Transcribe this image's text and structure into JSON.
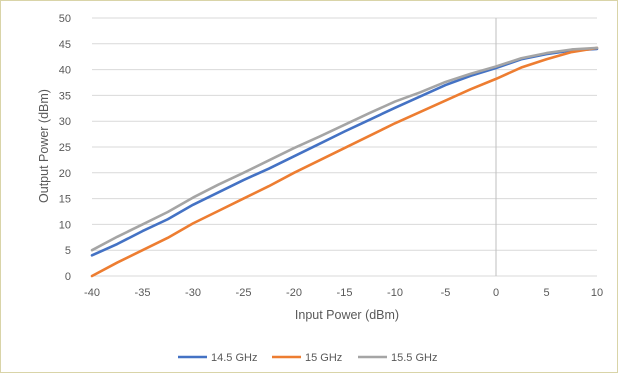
{
  "chart_data": {
    "type": "line",
    "title": "",
    "xlabel": "Input Power (dBm)",
    "ylabel": "Output Power (dBm)",
    "xlim": [
      -40,
      10
    ],
    "ylim": [
      0,
      50
    ],
    "x_ticks": [
      "-40",
      "-35",
      "-30",
      "-25",
      "-20",
      "-15",
      "-10",
      "-5",
      "0",
      "5",
      "10"
    ],
    "y_ticks": [
      "0",
      "5",
      "10",
      "15",
      "20",
      "25",
      "30",
      "35",
      "40",
      "45",
      "50"
    ],
    "grid": "horizontal",
    "legend_position": "bottom",
    "x": [
      -40,
      -37.5,
      -35,
      -32.5,
      -30,
      -27.5,
      -25,
      -22.5,
      -20,
      -17.5,
      -15,
      -12.5,
      -10,
      -7.5,
      -5,
      -2.5,
      0,
      2.5,
      5,
      7.5,
      10
    ],
    "series": [
      {
        "name": "14.5 GHz",
        "color": "#4472C4",
        "values": [
          4.0,
          6.2,
          8.7,
          11.0,
          13.8,
          16.2,
          18.6,
          20.8,
          23.2,
          25.6,
          28.0,
          30.3,
          32.6,
          34.8,
          37.0,
          38.8,
          40.3,
          42.0,
          43.0,
          43.7,
          44.0
        ]
      },
      {
        "name": "15 GHz",
        "color": "#ED7D31",
        "values": [
          0.0,
          2.6,
          5.0,
          7.4,
          10.2,
          12.6,
          15.0,
          17.4,
          20.0,
          22.4,
          24.8,
          27.2,
          29.6,
          31.8,
          34.0,
          36.2,
          38.2,
          40.4,
          42.0,
          43.4,
          44.2
        ]
      },
      {
        "name": "15.5 GHz",
        "color": "#A5A5A5",
        "values": [
          5.0,
          7.6,
          10.0,
          12.4,
          15.2,
          17.7,
          20.0,
          22.4,
          24.8,
          27.0,
          29.3,
          31.6,
          33.8,
          35.6,
          37.6,
          39.2,
          40.6,
          42.2,
          43.2,
          43.9,
          44.2
        ]
      }
    ]
  }
}
